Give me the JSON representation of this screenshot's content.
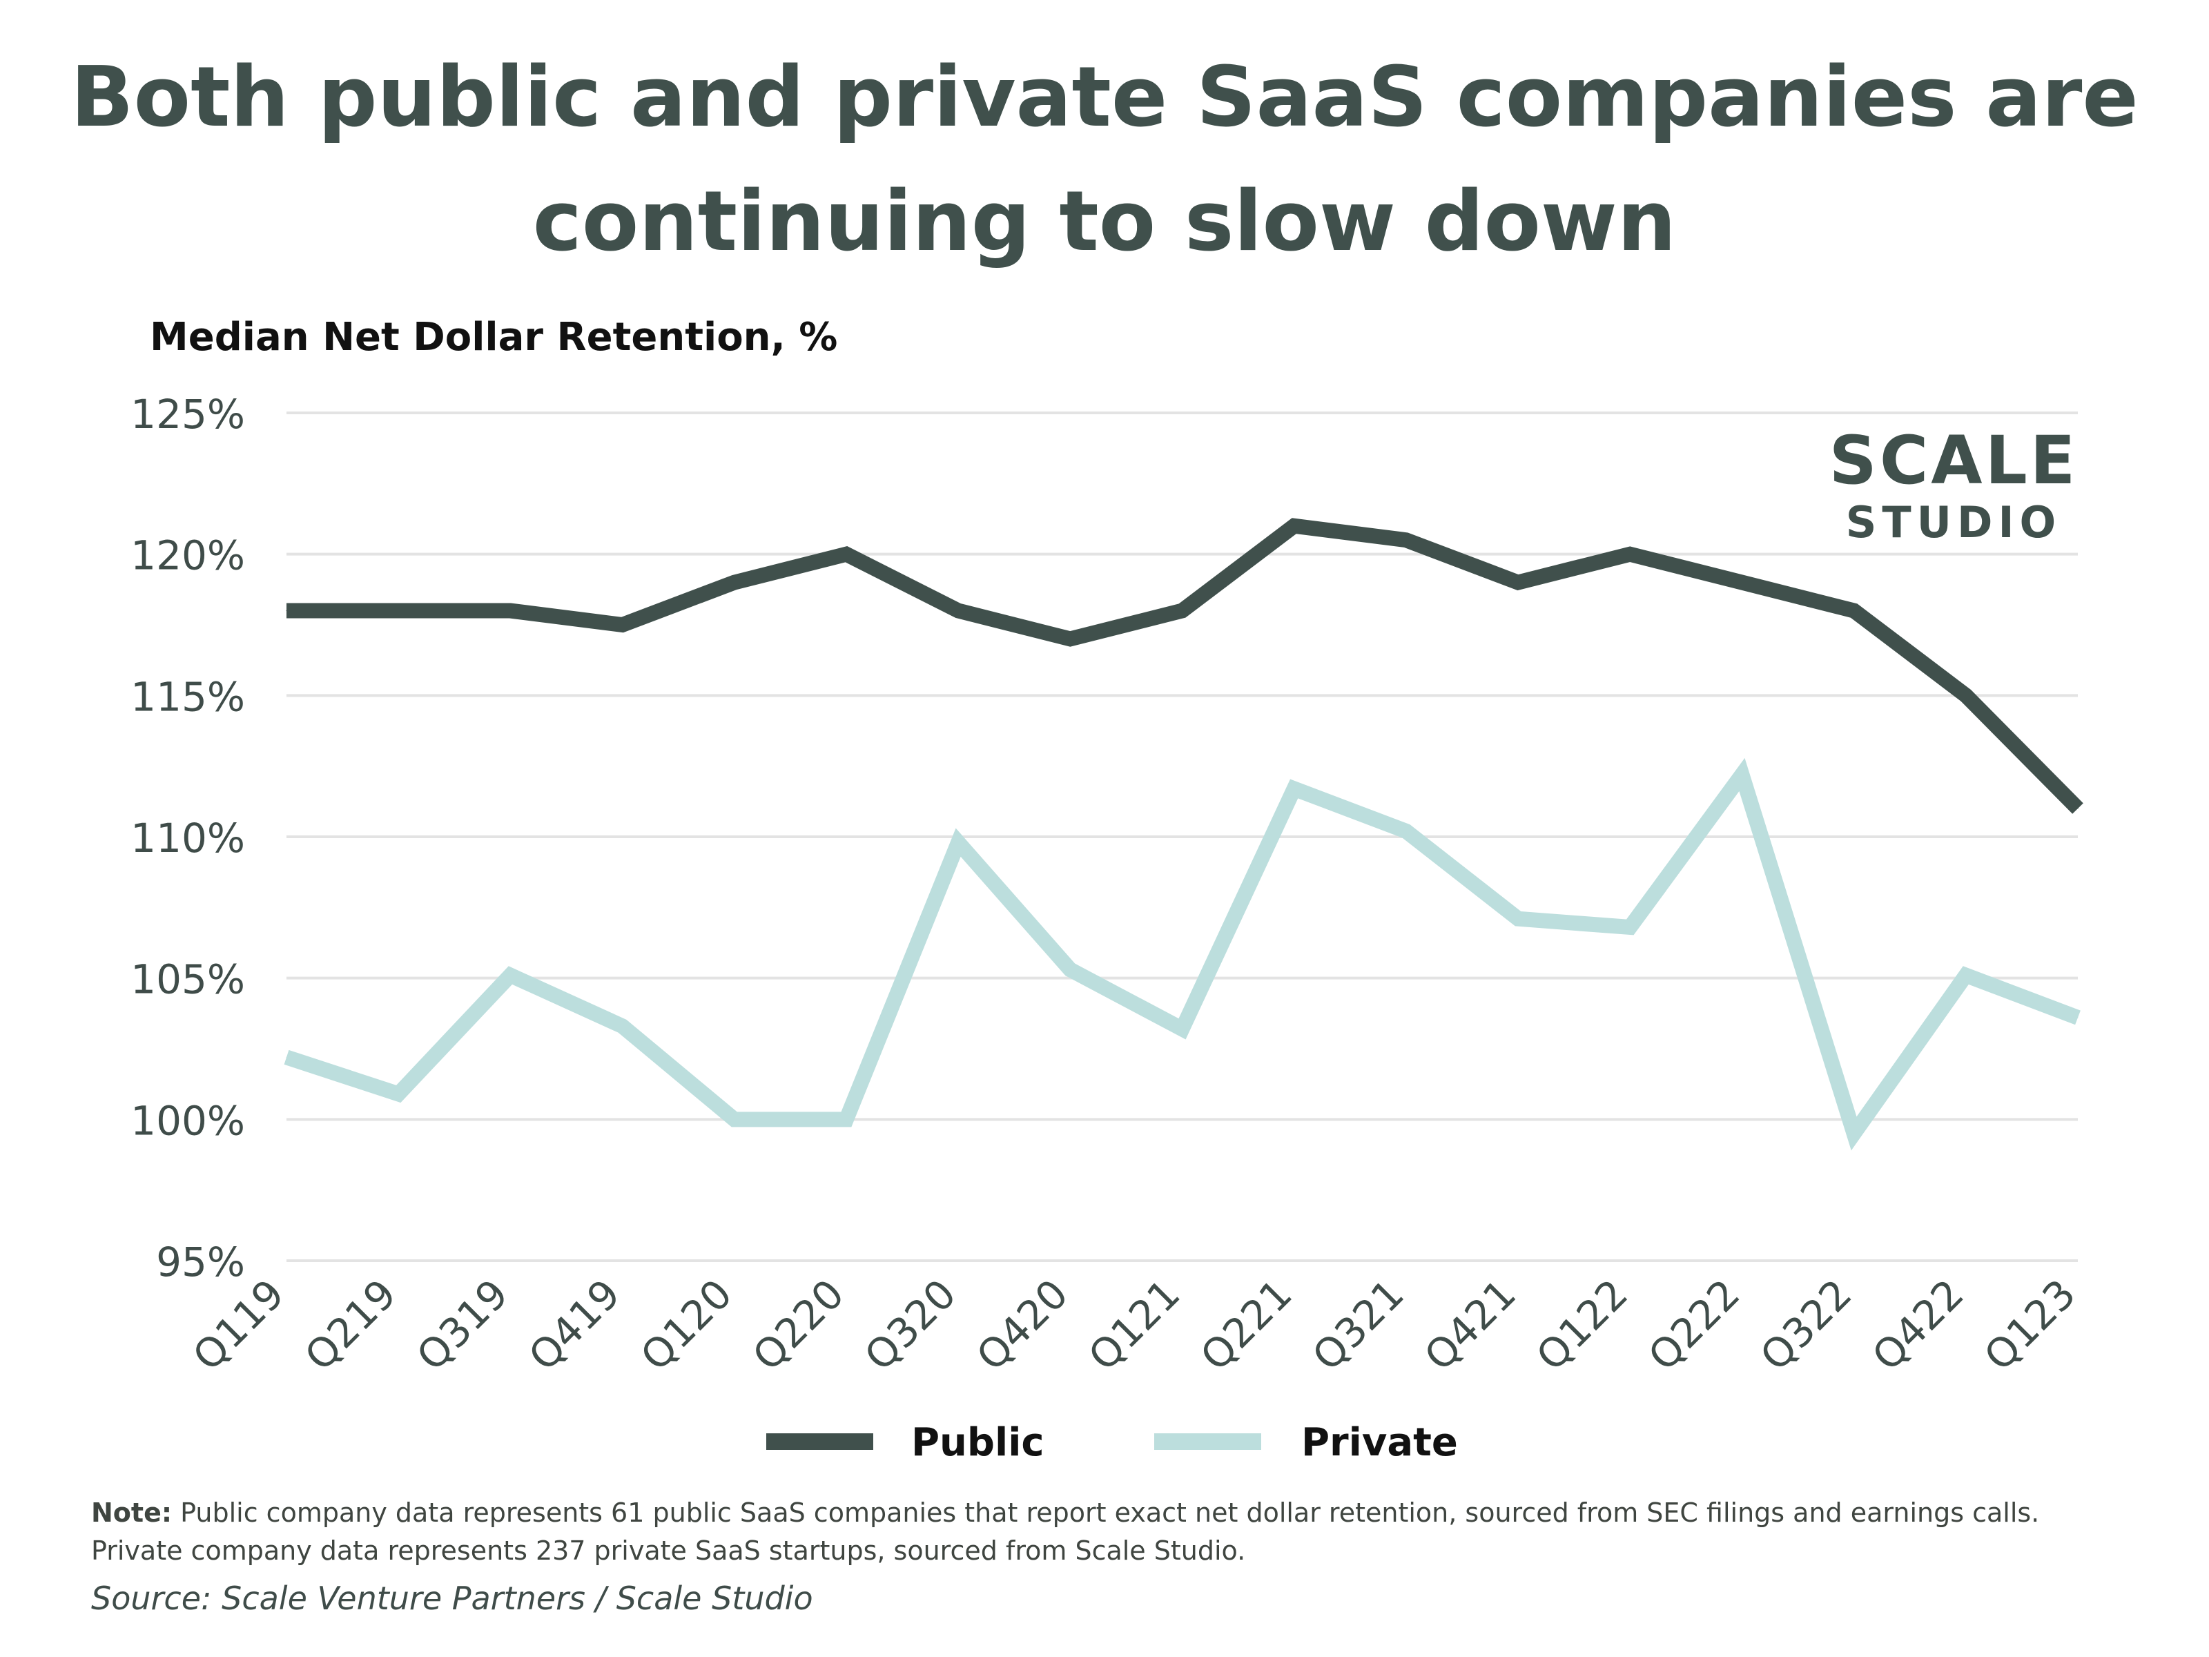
{
  "title_lines": [
    "Both public and private SaaS companies are",
    "continuing to slow down"
  ],
  "logo": {
    "line1": "SCALE",
    "line2": "STUDIO"
  },
  "note": {
    "label": "Note:",
    "line1": "Public company data represents 61 public SaaS companies that report exact net dollar retention, sourced from SEC filings and earnings calls.",
    "line2": "Private company data represents 237 private SaaS startups, sourced from Scale Studio."
  },
  "source": "Source: Scale Venture Partners / Scale Studio",
  "colors": {
    "public": "#40504c",
    "private": "#bcdedd",
    "grid": "#e3e3e3",
    "axis_text": "#3f4c49"
  },
  "chart_data": {
    "type": "line",
    "title": "Both public and private SaaS companies are continuing to slow down",
    "ylabel": "Median Net Dollar Retention, %",
    "xlabel": "",
    "ylim": [
      95,
      125
    ],
    "yticks": [
      95,
      100,
      105,
      110,
      115,
      120,
      125
    ],
    "ytick_labels": [
      "95%",
      "100%",
      "105%",
      "110%",
      "115%",
      "120%",
      "125%"
    ],
    "grid": true,
    "legend_position": "bottom-center",
    "categories": [
      "Q119",
      "Q219",
      "Q319",
      "Q419",
      "Q120",
      "Q220",
      "Q320",
      "Q420",
      "Q121",
      "Q221",
      "Q321",
      "Q421",
      "Q122",
      "Q222",
      "Q322",
      "Q422",
      "Q123"
    ],
    "series": [
      {
        "name": "Public",
        "values": [
          118,
          118,
          118,
          117.5,
          119,
          120,
          118,
          117,
          118,
          121,
          120.5,
          119,
          120,
          119,
          118,
          115,
          111
        ]
      },
      {
        "name": "Private",
        "values": [
          102.2,
          100.9,
          105.1,
          103.3,
          100,
          100,
          109.8,
          105.3,
          103.2,
          111.7,
          110.2,
          107.1,
          106.8,
          112.2,
          99.5,
          105.1,
          103.6
        ]
      }
    ]
  }
}
